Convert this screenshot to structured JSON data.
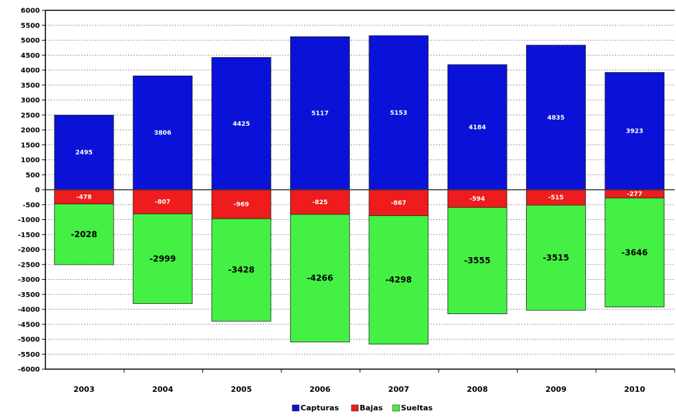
{
  "chart_data": {
    "type": "bar",
    "stacked": true,
    "categories": [
      "2003",
      "2004",
      "2005",
      "2006",
      "2007",
      "2008",
      "2009",
      "2010"
    ],
    "series": [
      {
        "name": "Capturas",
        "color": "#0a12d8",
        "values": [
          2495,
          3806,
          4425,
          5117,
          5153,
          4184,
          4835,
          3923
        ]
      },
      {
        "name": "Bajas",
        "color": "#ee1c1c",
        "values": [
          -478,
          -807,
          -969,
          -825,
          -867,
          -594,
          -515,
          -277
        ]
      },
      {
        "name": "Sueltas",
        "color": "#44f044",
        "values": [
          -2028,
          -2999,
          -3428,
          -4266,
          -4298,
          -3555,
          -3515,
          -3646
        ]
      }
    ],
    "ylim": [
      -6000,
      6000
    ],
    "ytick_step": 500,
    "grid": "horizontal dashed",
    "legend_position": "bottom-center",
    "title": "",
    "xlabel": "",
    "ylabel": ""
  }
}
